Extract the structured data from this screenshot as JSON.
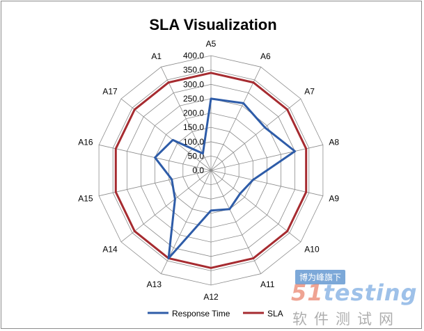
{
  "chart_data": {
    "type": "radar",
    "title": "SLA Visualization",
    "categories": [
      "A5",
      "A6",
      "A7",
      "A8",
      "A9",
      "A10",
      "A11",
      "A12",
      "A13",
      "A14",
      "A15",
      "A16",
      "A17",
      "A1"
    ],
    "r_ticks": [
      "0.0",
      "50.0",
      "100.0",
      "150.0",
      "200.0",
      "250.0",
      "300.0",
      "350.0",
      "400.0"
    ],
    "r_range": [
      0,
      400
    ],
    "series": [
      {
        "name": "Response Time",
        "color": "#2e5ca8",
        "values": [
          250,
          260,
          240,
          300,
          150,
          130,
          150,
          140,
          340,
          160,
          140,
          200,
          170,
          65
        ]
      },
      {
        "name": "SLA",
        "color": "#a62b30",
        "values": [
          340,
          340,
          340,
          340,
          340,
          340,
          340,
          340,
          340,
          340,
          340,
          340,
          340,
          340
        ]
      }
    ],
    "legend_position": "bottom",
    "grid": true
  },
  "watermark": {
    "tag": "博为峰旗下",
    "logo_num": "51",
    "logo_text": "testing",
    "subtitle": "软件测试网"
  }
}
